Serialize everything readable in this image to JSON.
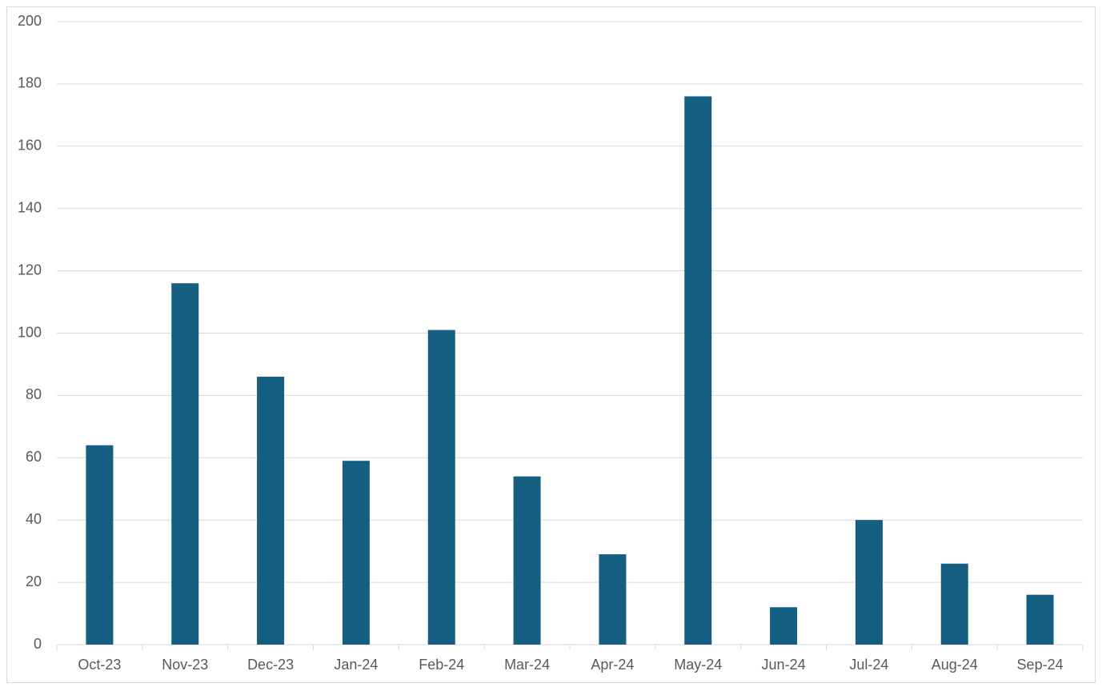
{
  "chart_data": {
    "type": "bar",
    "categories": [
      "Oct-23",
      "Nov-23",
      "Dec-23",
      "Jan-24",
      "Feb-24",
      "Mar-24",
      "Apr-24",
      "May-24",
      "Jun-24",
      "Jul-24",
      "Aug-24",
      "Sep-24"
    ],
    "values": [
      64,
      116,
      86,
      59,
      101,
      54,
      29,
      176,
      12,
      40,
      26,
      16
    ],
    "color": "#155f82",
    "ylim": [
      0,
      200
    ],
    "yticks": [
      0,
      20,
      40,
      60,
      80,
      100,
      120,
      140,
      160,
      180,
      200
    ],
    "grid": true
  }
}
